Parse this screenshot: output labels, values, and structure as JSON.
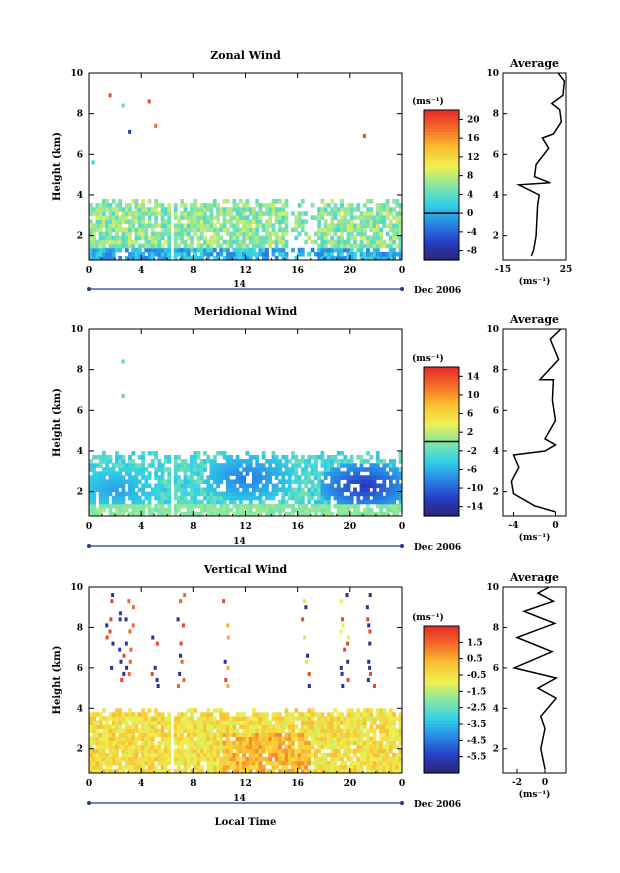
{
  "chart_data": [
    {
      "type": "heatmap",
      "title": "Zonal Wind",
      "ylabel": "Height (km)",
      "xlim": [
        0,
        24
      ],
      "ylim": [
        0.8,
        10
      ],
      "x_ticks": [
        "0",
        "4",
        "8",
        "12",
        "16",
        "20",
        "0"
      ],
      "y_ticks": [
        "2",
        "4",
        "6",
        "8",
        "10"
      ],
      "colorbar": {
        "unit": "(ms⁻¹)",
        "ticks": [
          "20",
          "16",
          "12",
          "8",
          "4",
          "0",
          "-4",
          "-8"
        ],
        "range": [
          -10,
          22
        ],
        "contour": 0
      },
      "date_bar": {
        "day": "14",
        "label": "Dec 2006"
      },
      "average": {
        "title": "Average",
        "xlim": [
          -15,
          25
        ],
        "x_ticks": [
          "-15",
          "25"
        ],
        "unit": "(ms⁻¹)",
        "profile": [
          [
            3,
            1
          ],
          [
            4.5,
            1.3
          ],
          [
            6,
            2
          ],
          [
            7,
            3.5
          ],
          [
            8,
            4
          ],
          [
            -5,
            4.5
          ],
          [
            15,
            4.6
          ],
          [
            5,
            4.9
          ],
          [
            6,
            5.5
          ],
          [
            14,
            6.3
          ],
          [
            10,
            6.8
          ],
          [
            17,
            7
          ],
          [
            22,
            7.6
          ],
          [
            21,
            8.2
          ],
          [
            16,
            8.5
          ],
          [
            23,
            8.9
          ],
          [
            24,
            9.6
          ],
          [
            20,
            10
          ]
        ]
      }
    },
    {
      "type": "heatmap",
      "title": "Meridional Wind",
      "ylabel": "Height (km)",
      "xlim": [
        0,
        24
      ],
      "ylim": [
        0.8,
        10
      ],
      "x_ticks": [
        "0",
        "4",
        "8",
        "12",
        "16",
        "20",
        "0"
      ],
      "y_ticks": [
        "2",
        "4",
        "6",
        "8",
        "10"
      ],
      "colorbar": {
        "unit": "(ms⁻¹)",
        "ticks": [
          "14",
          "10",
          "6",
          "2",
          "-2",
          "-6",
          "-10",
          "-14"
        ],
        "range": [
          -16,
          16
        ],
        "contour": 0
      },
      "date_bar": {
        "day": "14",
        "label": "Dec 2006"
      },
      "average": {
        "title": "Average",
        "xlim": [
          -5,
          1
        ],
        "x_ticks": [
          "-4",
          "0"
        ],
        "unit": "(ms⁻¹)",
        "profile": [
          [
            0,
            1
          ],
          [
            -2,
            1.3
          ],
          [
            -4,
            1.9
          ],
          [
            -4.2,
            2.5
          ],
          [
            -3.5,
            3.2
          ],
          [
            -4,
            3.8
          ],
          [
            -1,
            4
          ],
          [
            0,
            4.3
          ],
          [
            -1,
            4.6
          ],
          [
            0,
            5.5
          ],
          [
            -0.3,
            6.5
          ],
          [
            -0.2,
            7.5
          ],
          [
            -1.5,
            7.5
          ],
          [
            0.3,
            8.5
          ],
          [
            -0.5,
            9.5
          ],
          [
            0.5,
            10
          ]
        ]
      }
    },
    {
      "type": "heatmap",
      "title": "Vertical Wind",
      "xlabel": "Local Time",
      "ylabel": "Height (km)",
      "xlim": [
        0,
        24
      ],
      "ylim": [
        0.8,
        10
      ],
      "x_ticks": [
        "0",
        "4",
        "8",
        "12",
        "16",
        "20",
        "0"
      ],
      "y_ticks": [
        "2",
        "4",
        "6",
        "8",
        "10"
      ],
      "colorbar": {
        "unit": "(ms⁻¹)",
        "ticks": [
          "1.5",
          "0.5",
          "-0.5",
          "-1.5",
          "-2.5",
          "-3.5",
          "-4.5",
          "-5.5"
        ],
        "range": [
          -6.5,
          2.5
        ]
      },
      "date_bar": {
        "day": "14",
        "label": "Dec 2006"
      },
      "average": {
        "title": "Average",
        "xlim": [
          -3,
          1.5
        ],
        "x_ticks": [
          "-2",
          "0"
        ],
        "unit": "(ms⁻¹)",
        "profile": [
          [
            0,
            1
          ],
          [
            -0.3,
            2
          ],
          [
            0,
            3
          ],
          [
            -0.3,
            3.6
          ],
          [
            0.8,
            4.5
          ],
          [
            -0.5,
            5
          ],
          [
            0.8,
            5.5
          ],
          [
            -2.2,
            6
          ],
          [
            0.5,
            6.8
          ],
          [
            -2,
            7.5
          ],
          [
            0.7,
            8.2
          ],
          [
            -1.5,
            8.8
          ],
          [
            0.6,
            9.3
          ],
          [
            -0.5,
            9.7
          ],
          [
            0.3,
            10
          ]
        ]
      }
    }
  ],
  "pattern": {
    "zonal": {
      "low_top": 3.8,
      "low_value": 6,
      "sparse_high": [
        [
          0.2,
          5.5,
          2
        ],
        [
          1.5,
          8.8,
          20
        ],
        [
          2.5,
          8.3,
          4
        ],
        [
          3,
          7.0,
          -6
        ],
        [
          4.5,
          8.5,
          20
        ],
        [
          5,
          7.3,
          18
        ],
        [
          21,
          6.8,
          20
        ]
      ]
    },
    "meridional": {
      "low_top": 4.0,
      "core": [
        [
          12,
          2.6,
          -9
        ],
        [
          21,
          2.2,
          -13
        ],
        [
          2,
          2.0,
          -7
        ]
      ]
    },
    "vertical": {
      "low_top": 4.0,
      "high_cols": [
        1.5,
        2.5,
        3.0,
        5.0,
        7.0,
        10.5,
        16.5,
        19.5,
        21.5
      ]
    }
  }
}
